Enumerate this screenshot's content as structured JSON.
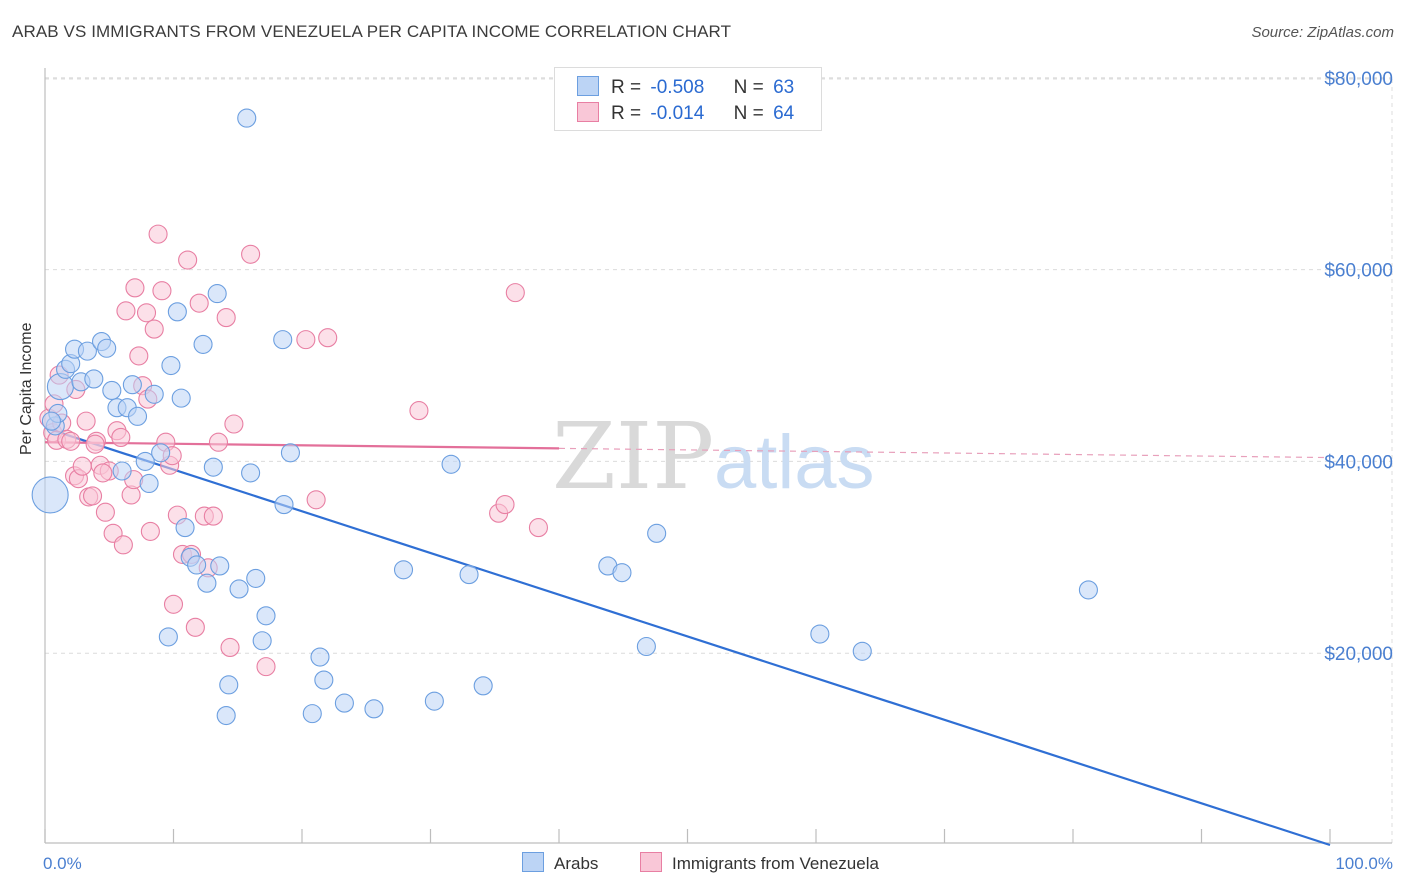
{
  "header": {
    "title": "ARAB VS IMMIGRANTS FROM VENEZUELA PER CAPITA INCOME CORRELATION CHART",
    "source": "Source: ZipAtlas.com"
  },
  "legend": {
    "r_label": "R =",
    "n_label": "N =",
    "series": [
      {
        "name": "Arabs",
        "r": "-0.508",
        "n": "63",
        "color": "#6c9fe0",
        "fill": "#bcd4f5"
      },
      {
        "name": "Immigrants from Venezuela",
        "r": "-0.014",
        "n": "64",
        "color": "#e87fa3",
        "fill": "#f9c7d7"
      }
    ]
  },
  "watermark": {
    "zip": "ZIP",
    "atlas": "atlas"
  },
  "chart_data": {
    "type": "scatter",
    "title": "ARAB VS IMMIGRANTS FROM VENEZUELA PER CAPITA INCOME CORRELATION CHART",
    "ylabel": "Per Capita Income",
    "xlabel": "",
    "xlim": [
      0,
      100
    ],
    "ylim": [
      0,
      80000
    ],
    "x_tick_labels": [
      "0.0%",
      "100.0%"
    ],
    "y_ticks": [
      20000,
      40000,
      60000,
      80000
    ],
    "y_tick_labels": [
      "$20,000",
      "$40,000",
      "$60,000",
      "$80,000"
    ],
    "grid": true,
    "legend_position": "top-center",
    "series": [
      {
        "name": "Arabs",
        "color": "#3b7ad6",
        "trend": {
          "x0": 0,
          "y0": 43500,
          "x1": 100,
          "y1": 0
        },
        "points": [
          [
            0.4,
            36500
          ],
          [
            0.8,
            43700
          ],
          [
            1.2,
            47800
          ],
          [
            1.6,
            49600
          ],
          [
            2.0,
            50200
          ],
          [
            2.3,
            51700
          ],
          [
            2.8,
            48300
          ],
          [
            3.3,
            51500
          ],
          [
            3.8,
            48600
          ],
          [
            4.4,
            52500
          ],
          [
            4.8,
            51800
          ],
          [
            5.2,
            47400
          ],
          [
            5.6,
            45600
          ],
          [
            6.0,
            39000
          ],
          [
            6.4,
            45600
          ],
          [
            6.8,
            48000
          ],
          [
            7.2,
            44700
          ],
          [
            7.8,
            40000
          ],
          [
            8.1,
            37700
          ],
          [
            8.5,
            47000
          ],
          [
            9.0,
            40900
          ],
          [
            9.6,
            21700
          ],
          [
            9.8,
            50000
          ],
          [
            10.3,
            55600
          ],
          [
            10.6,
            46600
          ],
          [
            10.9,
            33100
          ],
          [
            11.3,
            30000
          ],
          [
            11.8,
            29200
          ],
          [
            12.3,
            52200
          ],
          [
            12.6,
            27300
          ],
          [
            13.1,
            39400
          ],
          [
            13.6,
            29100
          ],
          [
            13.4,
            57500
          ],
          [
            14.1,
            13500
          ],
          [
            14.3,
            16700
          ],
          [
            15.1,
            26700
          ],
          [
            15.7,
            75800
          ],
          [
            16.0,
            38800
          ],
          [
            16.4,
            27800
          ],
          [
            16.9,
            21300
          ],
          [
            17.2,
            23900
          ],
          [
            18.5,
            52700
          ],
          [
            18.6,
            35500
          ],
          [
            19.1,
            40900
          ],
          [
            20.8,
            13700
          ],
          [
            21.4,
            19600
          ],
          [
            21.7,
            17200
          ],
          [
            23.3,
            14800
          ],
          [
            25.6,
            14200
          ],
          [
            27.9,
            28700
          ],
          [
            30.3,
            15000
          ],
          [
            31.6,
            39700
          ],
          [
            33.0,
            28200
          ],
          [
            34.1,
            16600
          ],
          [
            43.8,
            29100
          ],
          [
            44.9,
            28400
          ],
          [
            46.8,
            20700
          ],
          [
            47.6,
            32500
          ],
          [
            60.3,
            22000
          ],
          [
            63.6,
            20200
          ],
          [
            81.2,
            26600
          ],
          [
            1.0,
            45000
          ],
          [
            0.5,
            44200
          ]
        ]
      },
      {
        "name": "Immigrants from Venezuela",
        "color": "#e3709a",
        "trend": {
          "x0": 0,
          "y0": 42000,
          "x1": 100,
          "y1": 40400,
          "solid_until": 40
        },
        "points": [
          [
            0.3,
            44500
          ],
          [
            0.6,
            43000
          ],
          [
            0.9,
            42200
          ],
          [
            1.3,
            44000
          ],
          [
            1.7,
            42300
          ],
          [
            2.0,
            42100
          ],
          [
            2.3,
            38500
          ],
          [
            2.6,
            38200
          ],
          [
            2.9,
            39500
          ],
          [
            3.2,
            44200
          ],
          [
            3.4,
            36300
          ],
          [
            3.7,
            36400
          ],
          [
            4.0,
            42100
          ],
          [
            4.3,
            39600
          ],
          [
            4.7,
            34700
          ],
          [
            5.0,
            39000
          ],
          [
            5.3,
            32500
          ],
          [
            5.6,
            43200
          ],
          [
            5.9,
            42500
          ],
          [
            6.1,
            31300
          ],
          [
            6.3,
            55700
          ],
          [
            6.7,
            36500
          ],
          [
            7.0,
            58100
          ],
          [
            7.3,
            51000
          ],
          [
            7.6,
            47900
          ],
          [
            7.9,
            55500
          ],
          [
            8.2,
            32700
          ],
          [
            8.5,
            53800
          ],
          [
            8.8,
            63700
          ],
          [
            9.1,
            57800
          ],
          [
            9.4,
            42000
          ],
          [
            9.7,
            39600
          ],
          [
            10.0,
            25100
          ],
          [
            10.3,
            34400
          ],
          [
            10.7,
            30300
          ],
          [
            11.1,
            61000
          ],
          [
            11.4,
            30300
          ],
          [
            11.7,
            22700
          ],
          [
            12.0,
            56500
          ],
          [
            12.4,
            34300
          ],
          [
            12.7,
            28900
          ],
          [
            13.1,
            34300
          ],
          [
            13.5,
            42000
          ],
          [
            14.1,
            55000
          ],
          [
            14.4,
            20600
          ],
          [
            14.7,
            43900
          ],
          [
            16.0,
            61600
          ],
          [
            17.2,
            18600
          ],
          [
            20.3,
            52700
          ],
          [
            21.1,
            36000
          ],
          [
            22.0,
            52900
          ],
          [
            29.1,
            45300
          ],
          [
            35.3,
            34600
          ],
          [
            35.8,
            35500
          ],
          [
            36.6,
            57600
          ],
          [
            38.4,
            33100
          ],
          [
            1.1,
            49000
          ],
          [
            2.4,
            47500
          ],
          [
            3.9,
            41800
          ],
          [
            0.7,
            46000
          ],
          [
            4.5,
            38800
          ],
          [
            6.9,
            38100
          ],
          [
            8.0,
            46500
          ],
          [
            9.9,
            40600
          ]
        ]
      }
    ]
  }
}
